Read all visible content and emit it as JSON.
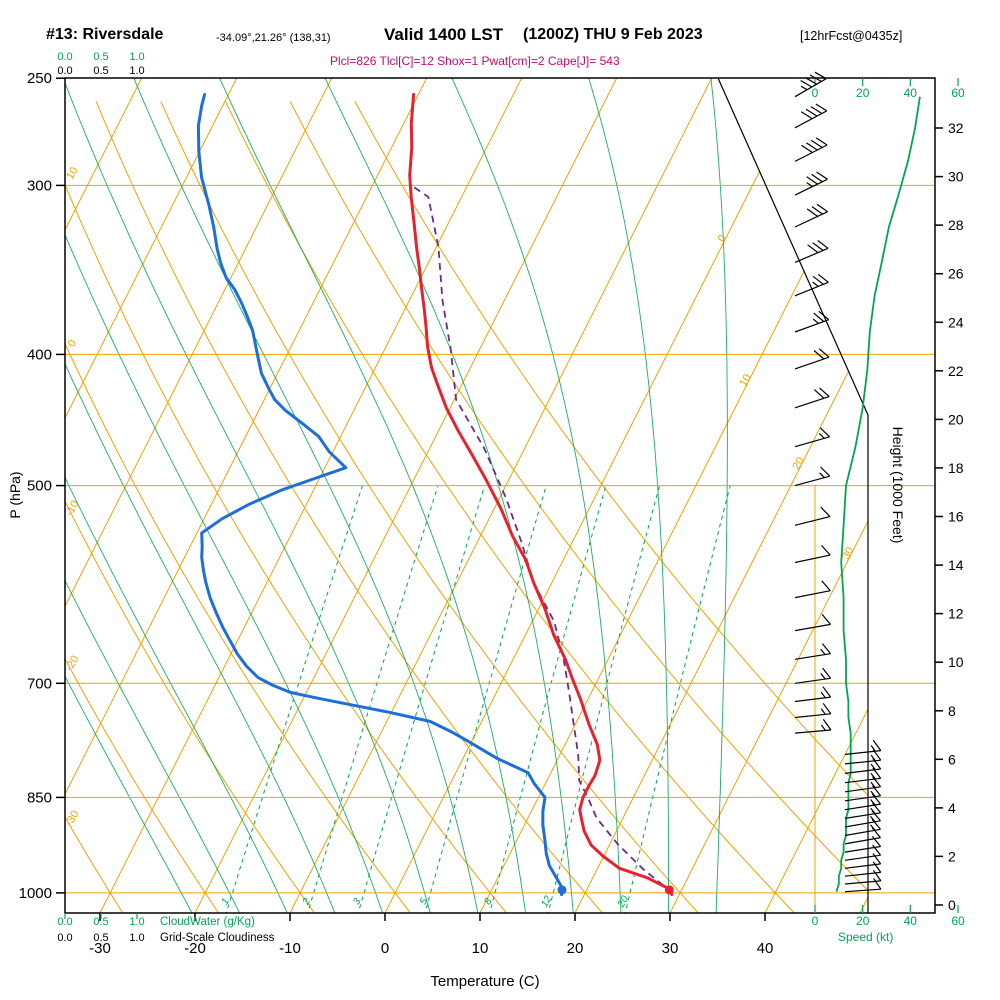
{
  "header": {
    "station": "#13: Riversdale",
    "coords": "-34.09°,21.26° (138,31)",
    "valid": "Valid 1400 LST",
    "valid_detail": "(1200Z) THU 9 Feb 2023",
    "fcst_tag": "[12hrFcst@0435z]",
    "indices": "Plcl=826 Tlcl[C]=12 Shox=1 Pwat[cm]=2 Cape[J]= 543"
  },
  "axes": {
    "pressure": {
      "label": "P (hPa)",
      "ticks": [
        250,
        300,
        400,
        500,
        700,
        850,
        1000
      ],
      "gridlines": [
        300,
        400,
        500,
        700,
        850,
        1000
      ]
    },
    "temperature": {
      "label": "Temperature (C)",
      "ticks": [
        -30,
        -20,
        -10,
        0,
        10,
        20,
        30,
        40
      ]
    },
    "height": {
      "label": "Height (1000 Feet)",
      "ticks": [
        0,
        2,
        4,
        6,
        8,
        10,
        12,
        14,
        16,
        18,
        20,
        22,
        24,
        26,
        28,
        30,
        32
      ]
    },
    "speed": {
      "label": "Speed (kt)",
      "ticks": [
        0,
        20,
        40,
        60
      ]
    },
    "cloudwater": {
      "label": "CloudWater (g/Kg)",
      "ticks": [
        "0.0",
        "0.5",
        "1.0"
      ]
    },
    "cloudiness": {
      "label": "Grid-Scale Cloudiness",
      "ticks": [
        "0.0",
        "0.5",
        "1.0"
      ]
    }
  },
  "colors": {
    "grid": "#f0a202",
    "green": "#00a650",
    "red": "#e8212e",
    "blue": "#1d6ed9",
    "parcel": "#6b2a8c",
    "indices": "#c40a70",
    "frame": "#000000"
  },
  "chart_data": {
    "type": "skewt-log-p",
    "title": "#13: Riversdale Valid 1400 LST (1200Z) THU 9 Feb 2023",
    "isotherm_labels": [
      0,
      10,
      20,
      30
    ],
    "dry_adiabat_labels": [
      10,
      0,
      -10,
      -20,
      -30
    ],
    "mixing_ratio_lines": [
      1,
      2,
      3,
      5,
      8,
      12,
      20
    ],
    "moist_adiabat_starts": [
      -20,
      -15,
      -10,
      -5,
      0,
      5,
      10,
      15,
      20,
      25,
      30,
      35
    ],
    "pressure_range_hpa": [
      250,
      1035
    ],
    "temperature_axis_range_c": [
      -35,
      45
    ],
    "surface": {
      "pressure_hpa": 995,
      "temp_c": 28.7,
      "dewpoint_c": 17.4
    },
    "indices": {
      "Plcl": 826,
      "Tlcl_C": 12,
      "Shox": 1,
      "Pwat_cm": 2,
      "Cape_J": 543
    },
    "temperature_profile": [
      [
        1003,
        29.2
      ],
      [
        993,
        28.6
      ],
      [
        975,
        25.8
      ],
      [
        959,
        22.3
      ],
      [
        940,
        20.0
      ],
      [
        922,
        18.1
      ],
      [
        900,
        16.6
      ],
      [
        880,
        15.6
      ],
      [
        868,
        15.0
      ],
      [
        850,
        14.7
      ],
      [
        835,
        14.7
      ],
      [
        819,
        14.8
      ],
      [
        798,
        14.5
      ],
      [
        777,
        13.4
      ],
      [
        750,
        11.4
      ],
      [
        719,
        9.2
      ],
      [
        695,
        7.3
      ],
      [
        672,
        5.5
      ],
      [
        645,
        3.0
      ],
      [
        617,
        0.7
      ],
      [
        590,
        -1.9
      ],
      [
        567,
        -4.0
      ],
      [
        545,
        -6.6
      ],
      [
        520,
        -9.3
      ],
      [
        495,
        -12.4
      ],
      [
        473,
        -15.4
      ],
      [
        455,
        -18.0
      ],
      [
        438,
        -20.4
      ],
      [
        420,
        -22.7
      ],
      [
        409,
        -24.1
      ],
      [
        395,
        -25.6
      ],
      [
        382,
        -26.8
      ],
      [
        370,
        -28.0
      ],
      [
        357,
        -29.4
      ],
      [
        345,
        -30.7
      ],
      [
        333,
        -32.1
      ],
      [
        320,
        -33.6
      ],
      [
        306,
        -35.3
      ],
      [
        295,
        -36.6
      ],
      [
        281,
        -37.9
      ],
      [
        270,
        -39.2
      ],
      [
        257,
        -40.5
      ]
    ],
    "dewpoint_profile": [
      [
        1003,
        17.6
      ],
      [
        993,
        17.4
      ],
      [
        975,
        16.2
      ],
      [
        955,
        14.8
      ],
      [
        935,
        13.8
      ],
      [
        915,
        13.0
      ],
      [
        890,
        11.9
      ],
      [
        870,
        11.2
      ],
      [
        850,
        10.7
      ],
      [
        830,
        8.8
      ],
      [
        815,
        7.6
      ],
      [
        795,
        3.5
      ],
      [
        773,
        -0.3
      ],
      [
        760,
        -2.7
      ],
      [
        747,
        -5.4
      ],
      [
        736,
        -10.0
      ],
      [
        726,
        -14.7
      ],
      [
        718,
        -18.5
      ],
      [
        711,
        -21.7
      ],
      [
        702,
        -24.0
      ],
      [
        693,
        -25.9
      ],
      [
        680,
        -27.7
      ],
      [
        666,
        -29.3
      ],
      [
        650,
        -30.9
      ],
      [
        636,
        -32.3
      ],
      [
        620,
        -33.8
      ],
      [
        606,
        -35.1
      ],
      [
        590,
        -36.4
      ],
      [
        578,
        -37.3
      ],
      [
        565,
        -38.2
      ],
      [
        555,
        -38.7
      ],
      [
        542,
        -39.5
      ],
      [
        529,
        -38.1
      ],
      [
        516,
        -36.0
      ],
      [
        504,
        -33.4
      ],
      [
        494,
        -30.5
      ],
      [
        485,
        -27.8
      ],
      [
        472,
        -30.4
      ],
      [
        460,
        -32.3
      ],
      [
        450,
        -34.7
      ],
      [
        440,
        -37.2
      ],
      [
        432,
        -38.9
      ],
      [
        424,
        -40.1
      ],
      [
        413,
        -41.7
      ],
      [
        403,
        -42.8
      ],
      [
        393,
        -43.9
      ],
      [
        384,
        -44.9
      ],
      [
        375,
        -46.2
      ],
      [
        366,
        -47.6
      ],
      [
        358,
        -49.0
      ],
      [
        351,
        -50.5
      ],
      [
        342,
        -51.9
      ],
      [
        334,
        -53.0
      ],
      [
        322,
        -54.5
      ],
      [
        310,
        -56.2
      ],
      [
        296,
        -58.4
      ],
      [
        283,
        -60.1
      ],
      [
        271,
        -61.5
      ],
      [
        262,
        -62.2
      ],
      [
        257,
        -62.5
      ]
    ],
    "parcel_profile": [
      [
        1000,
        29.2
      ],
      [
        960,
        24.8
      ],
      [
        920,
        20.8
      ],
      [
        880,
        17.2
      ],
      [
        850,
        15.2
      ],
      [
        826,
        13.4
      ],
      [
        790,
        11.9
      ],
      [
        750,
        9.8
      ],
      [
        710,
        7.6
      ],
      [
        670,
        5.2
      ],
      [
        630,
        2.3
      ],
      [
        590,
        -1.9
      ],
      [
        550,
        -5.4
      ],
      [
        511,
        -9.3
      ],
      [
        469,
        -14.3
      ],
      [
        432,
        -19.8
      ],
      [
        397,
        -23.0
      ],
      [
        365,
        -26.5
      ],
      [
        333,
        -29.8
      ],
      [
        306,
        -33.5
      ],
      [
        300,
        -35.9
      ]
    ],
    "wind": [
      [
        258,
        44,
        60
      ],
      [
        272,
        42,
        62
      ],
      [
        288,
        39,
        63
      ],
      [
        305,
        35,
        64
      ],
      [
        322,
        31,
        65
      ],
      [
        342,
        28,
        67
      ],
      [
        362,
        25,
        68
      ],
      [
        385,
        23,
        70
      ],
      [
        410,
        22,
        71
      ],
      [
        438,
        20,
        72
      ],
      [
        468,
        17,
        74
      ],
      [
        500,
        13,
        75
      ],
      [
        535,
        12,
        76
      ],
      [
        570,
        11,
        78
      ],
      [
        605,
        12,
        79
      ],
      [
        640,
        12,
        80
      ],
      [
        672,
        13,
        81
      ],
      [
        700,
        13,
        82
      ],
      [
        722,
        14,
        83
      ],
      [
        742,
        14,
        84
      ],
      [
        762,
        15,
        85
      ],
      [
        790,
        15,
        84
      ],
      [
        803,
        15,
        84
      ],
      [
        816,
        15,
        83
      ],
      [
        829,
        14,
        83
      ],
      [
        842,
        14,
        82
      ],
      [
        855,
        14,
        82
      ],
      [
        868,
        14,
        81
      ],
      [
        881,
        13,
        81
      ],
      [
        894,
        13,
        80
      ],
      [
        907,
        13,
        80
      ],
      [
        920,
        12,
        80
      ],
      [
        933,
        12,
        81
      ],
      [
        946,
        11,
        82
      ],
      [
        959,
        11,
        83
      ],
      [
        972,
        10,
        84
      ],
      [
        985,
        10,
        85
      ],
      [
        998,
        9,
        86
      ]
    ]
  }
}
